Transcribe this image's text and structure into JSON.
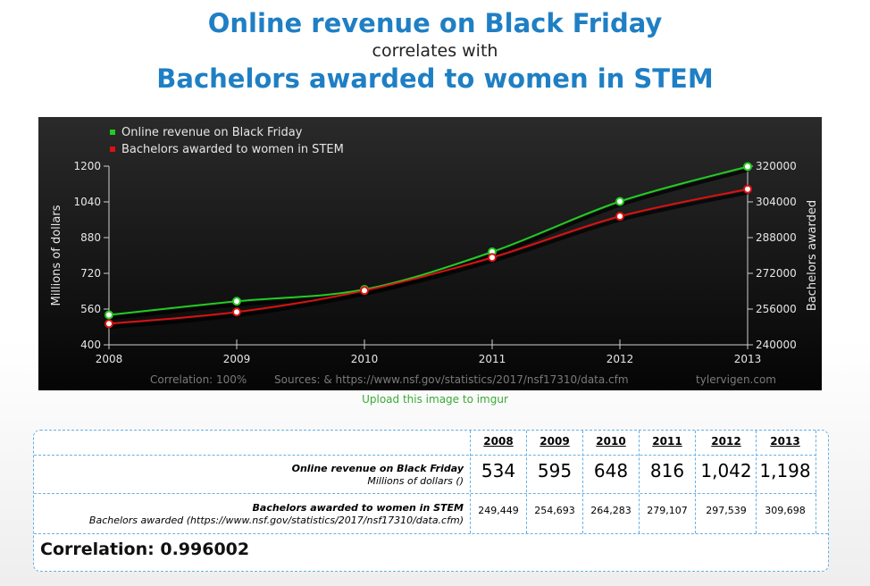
{
  "title": {
    "line1": "Online revenue on Black Friday",
    "line2": "correlates with",
    "line3": "Bachelors awarded to women in STEM"
  },
  "upload_link": "Upload this image to imgur",
  "chart_data": {
    "type": "line",
    "x": [
      2008,
      2009,
      2010,
      2011,
      2012,
      2013
    ],
    "xlim": [
      2008,
      2013
    ],
    "series": [
      {
        "name": "Online revenue on Black Friday",
        "axis": "left",
        "color": "#22cc22",
        "values": [
          534,
          595,
          648,
          816,
          1042,
          1198
        ]
      },
      {
        "name": "Bachelors awarded to women in STEM",
        "axis": "right",
        "color": "#dd1111",
        "values": [
          249449,
          254693,
          264283,
          279107,
          297539,
          309698
        ]
      }
    ],
    "ylabel": "Millions of dollars",
    "ylim": [
      400,
      1200
    ],
    "yticks": [
      400,
      560,
      720,
      880,
      1040,
      1200
    ],
    "y2label": "Bachelors awarded",
    "y2lim": [
      240000,
      320000
    ],
    "y2ticks": [
      240000,
      256000,
      272000,
      288000,
      304000,
      320000
    ],
    "footer": {
      "correlation": "Correlation: 100%",
      "sources": "Sources:  & https://www.nsf.gov/statistics/2017/nsf17310/data.cfm",
      "credit": "tylervigen.com"
    },
    "legend_position": "top-left",
    "grid": false
  },
  "table": {
    "years": [
      "2008",
      "2009",
      "2010",
      "2011",
      "2012",
      "2013"
    ],
    "row1": {
      "label": "Online revenue on Black Friday",
      "unit": "Millions of dollars ()",
      "values": [
        "534",
        "595",
        "648",
        "816",
        "1,042",
        "1,198"
      ]
    },
    "row2": {
      "label": "Bachelors awarded to women in STEM",
      "unit": "Bachelors awarded (https://www.nsf.gov/statistics/2017/nsf17310/data.cfm)",
      "values": [
        "249,449",
        "254,693",
        "264,283",
        "279,107",
        "297,539",
        "309,698"
      ]
    },
    "correlation": "Correlation: 0.996002"
  }
}
